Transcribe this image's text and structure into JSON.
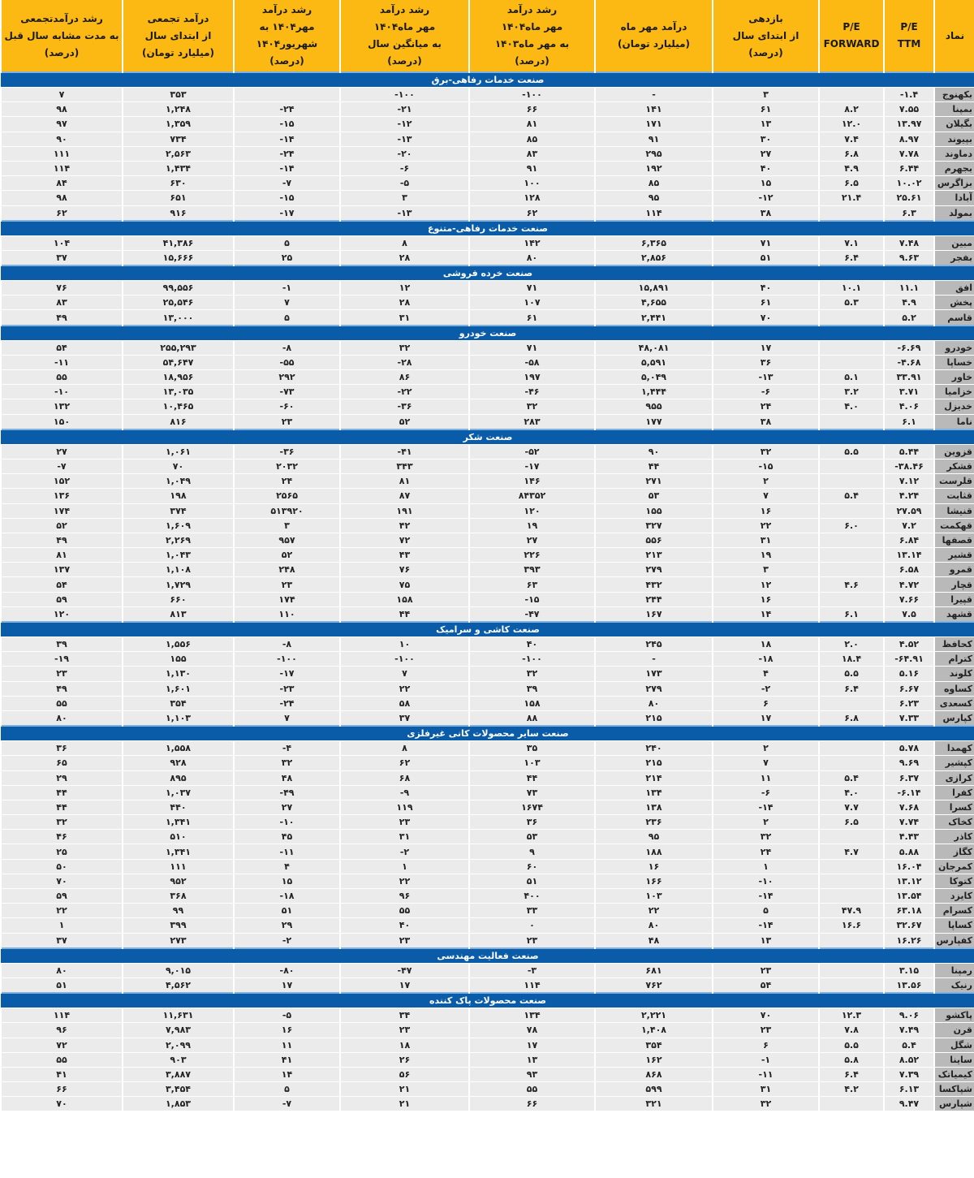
{
  "headers": [
    "نماد",
    "P/E\nTTM",
    "P/E\nFORWARD",
    "بازدهی\nاز ابتدای سال\n(درصد)",
    "درآمد مهر ماه\n(میلیارد تومان)",
    "رشد درآمد\nمهر ماه۱۴۰۴\nبه مهر ماه۱۴۰۳\n(درصد)",
    "رشد درآمد\nمهر ماه۱۴۰۴\nبه میانگین سال\n(درصد)",
    "رشد درآمد\nمهر۱۴۰۴ به\nشهریور۱۴۰۴\n(درصد)",
    "درآمد تجمعی\nاز ابتدای سال\n(میلیارد تومان)",
    "رشد درآمدتجمعی\nبه مدت مشابه سال قبل\n(درصد)"
  ],
  "colors": {
    "header_bg": "#fdb913",
    "group_bg": "#0b5ca8",
    "row_bg": "#ebebeb",
    "name_bg": "#b9b9b9"
  },
  "groups": [
    {
      "title": "صنعت خدمات رفاهی-برق",
      "rows": [
        [
          "بکهنوج",
          "-۱.۴",
          "",
          "۳",
          "-",
          "-۱۰۰",
          "-۱۰۰",
          "",
          "۳۵۳",
          "۷"
        ],
        [
          "بمپنا",
          "۷.۵۵",
          "۸.۲",
          "۶۱",
          "۱۴۱",
          "۶۶",
          "-۲۱",
          "-۲۴",
          "۱,۲۴۸",
          "۹۸"
        ],
        [
          "بگیلان",
          "۱۳.۹۷",
          "۱۲.۰",
          "۱۳",
          "۱۷۱",
          "۸۱",
          "-۱۲",
          "-۱۵",
          "۱,۳۵۹",
          "۹۷"
        ],
        [
          "بپیوند",
          "۸.۹۷",
          "۷.۴",
          "۳۰",
          "۹۱",
          "۸۵",
          "-۱۳",
          "-۱۴",
          "۷۳۴",
          "۹۰"
        ],
        [
          "دماوند",
          "۷.۷۸",
          "۶.۸",
          "۲۷",
          "۲۹۵",
          "۸۳",
          "-۲۰",
          "-۲۴",
          "۲,۵۶۳",
          "۱۱۱"
        ],
        [
          "بجهرم",
          "۶.۴۴",
          "۴.۹",
          "۴۰",
          "۱۹۲",
          "۹۱",
          "-۶",
          "-۱۴",
          "۱,۴۳۴",
          "۱۱۴"
        ],
        [
          "بزاگرس",
          "۱۰.۰۲",
          "۶.۵",
          "۱۵",
          "۸۵",
          "۱۰۰",
          "-۵",
          "-۷",
          "۶۳۰",
          "۸۴"
        ],
        [
          "آبادا",
          "۲۵.۶۱",
          "۲۱.۴",
          "-۱۲",
          "۹۵",
          "۱۲۸",
          "۳",
          "-۱۵",
          "۶۵۱",
          "۹۸"
        ],
        [
          "بمولد",
          "۶.۳",
          "",
          "۳۸",
          "۱۱۴",
          "۶۲",
          "-۱۳",
          "-۱۷",
          "۹۱۶",
          "۶۲"
        ]
      ]
    },
    {
      "title": "صنعت خدمات رفاهی-متنوع",
      "rows": [
        [
          "مبین",
          "۷.۴۸",
          "۷.۱",
          "۷۱",
          "۶,۳۶۵",
          "۱۴۲",
          "۸",
          "۵",
          "۴۱,۳۸۶",
          "۱۰۴"
        ],
        [
          "بفجر",
          "۹.۶۳",
          "۶.۴",
          "۵۱",
          "۲,۸۵۶",
          "۸۰",
          "۲۸",
          "۲۵",
          "۱۵,۶۶۶",
          "۳۷"
        ]
      ]
    },
    {
      "title": "صنعت خرده فروشی",
      "rows": [
        [
          "افق",
          "۱۱.۱",
          "۱۰.۱",
          "۴۰",
          "۱۵,۸۹۱",
          "۷۱",
          "۱۲",
          "-۱",
          "۹۹,۵۵۶",
          "۷۶"
        ],
        [
          "پخش",
          "۴.۹",
          "۵.۳",
          "۶۱",
          "۴,۶۵۵",
          "۱۰۷",
          "۲۸",
          "۷",
          "۲۵,۵۴۶",
          "۸۳"
        ],
        [
          "قاسم",
          "۵.۲",
          "",
          "۷۰",
          "۲,۴۴۱",
          "۶۱",
          "۳۱",
          "۵",
          "۱۳,۰۰۰",
          "۴۹"
        ]
      ]
    },
    {
      "title": "صنعت خودرو",
      "rows": [
        [
          "خودرو",
          "-۶.۶۹",
          "",
          "۱۷",
          "۴۸,۰۸۱",
          "۷۱",
          "۳۲",
          "-۸",
          "۲۵۵,۲۹۳",
          "۵۴"
        ],
        [
          "خساپا",
          "-۴.۶۸",
          "",
          "۳۶",
          "۵,۵۹۱",
          "-۵۸",
          "-۲۸",
          "-۵۵",
          "۵۴,۶۴۷",
          "-۱۱"
        ],
        [
          "خاور",
          "۳۳.۹۱",
          "۵.۱",
          "-۱۳",
          "۵,۰۴۹",
          "۱۹۷",
          "۸۶",
          "۲۹۲",
          "۱۸,۹۵۶",
          "۵۵"
        ],
        [
          "خزامیا",
          "۳.۷۱",
          "۳.۲",
          "-۶",
          "۱,۴۴۴",
          "-۴۶",
          "-۲۲",
          "-۷۳",
          "۱۳,۰۳۵",
          "-۱۰"
        ],
        [
          "خدیزل",
          "۴.۰۶",
          "۴.۰",
          "۲۴",
          "۹۵۵",
          "۳۲",
          "-۳۶",
          "-۶۰",
          "۱۰,۴۶۵",
          "۱۳۲"
        ],
        [
          "ناما",
          "۶.۱",
          "",
          "۳۸",
          "۱۷۷",
          "۲۸۳",
          "۵۲",
          "۲۳",
          "۸۱۶",
          "۱۵۰"
        ]
      ]
    },
    {
      "title": "صنعت شکر",
      "rows": [
        [
          "قزوین",
          "۵.۴۴",
          "۵.۵",
          "۳۲",
          "۹۰",
          "-۵۲",
          "-۴۱",
          "-۳۶",
          "۱,۰۶۱",
          "۲۷"
        ],
        [
          "قشکر",
          "-۳۸.۴۶",
          "",
          "-۱۵",
          "۴۴",
          "-۱۷",
          "۳۴۳",
          "۲۰۳۲",
          "۷۰",
          "-۷"
        ],
        [
          "قلرست",
          "۷.۱۲",
          "",
          "۲",
          "۲۷۱",
          "۱۴۶",
          "۸۱",
          "۲۴",
          "۱,۰۴۹",
          "۱۵۲"
        ],
        [
          "قثابت",
          "۴.۲۴",
          "۵.۴",
          "۷",
          "۵۳",
          "۸۴۳۵۲",
          "۸۷",
          "۲۵۶۵",
          "۱۹۸",
          "۱۳۶"
        ],
        [
          "قنیشا",
          "۲۷.۵۹",
          "",
          "۱۶",
          "۱۵۵",
          "۱۲۰",
          "۱۹۱",
          "۵۱۳۹۲۰",
          "۳۷۴",
          "۱۷۴"
        ],
        [
          "قهکمت",
          "۷.۲",
          "۶.۰",
          "۲۲",
          "۳۲۷",
          "۱۹",
          "۴۲",
          "۳",
          "۱,۶۰۹",
          "۵۲"
        ],
        [
          "قصفها",
          "۶.۸۴",
          "",
          "۳۱",
          "۵۵۶",
          "۲۷",
          "۷۲",
          "۹۵۷",
          "۲,۲۶۹",
          "۴۹"
        ],
        [
          "قشیر",
          "۱۳.۱۴",
          "",
          "۱۹",
          "۲۱۳",
          "۲۲۶",
          "۴۳",
          "۵۲",
          "۱,۰۴۳",
          "۸۱"
        ],
        [
          "قمرو",
          "۶.۵۸",
          "",
          "۳",
          "۲۷۹",
          "۳۹۳",
          "۷۶",
          "۲۴۸",
          "۱,۱۰۸",
          "۱۳۷"
        ],
        [
          "قچار",
          "۴.۷۲",
          "۴.۶",
          "۱۲",
          "۴۳۲",
          "۶۳",
          "۷۵",
          "۲۳",
          "۱,۷۲۹",
          "۵۴"
        ],
        [
          "قپیرا",
          "۷.۶۶",
          "",
          "۱۶",
          "۲۴۴",
          "-۱۵",
          "۱۵۸",
          "۱۷۴",
          "۶۶۰",
          "۵۹"
        ],
        [
          "قشهد",
          "۷.۵",
          "۶.۱",
          "۱۴",
          "۱۶۷",
          "-۴۷",
          "۴۴",
          "۱۱۰",
          "۸۱۳",
          "۱۲۰"
        ]
      ]
    },
    {
      "title": "صنعت کاشی و سرامیک",
      "rows": [
        [
          "کحافظ",
          "۴.۵۲",
          "۲.۰",
          "۱۸",
          "۲۴۵",
          "۴۰",
          "۱۰",
          "-۸",
          "۱,۵۵۶",
          "۳۹"
        ],
        [
          "کترام",
          "-۶۴.۹۱",
          "۱۸.۴",
          "-۱۸",
          "-",
          "-۱۰۰",
          "-۱۰۰",
          "-۱۰۰",
          "۱۵۵",
          "-۱۹"
        ],
        [
          "کلوند",
          "۵.۱۶",
          "۵.۵",
          "۴",
          "۱۷۳",
          "۳۲",
          "۷",
          "-۱۷",
          "۱,۱۳۰",
          "۲۳"
        ],
        [
          "کساوه",
          "۶.۶۷",
          "۶.۴",
          "-۲",
          "۲۷۹",
          "۳۹",
          "۲۲",
          "-۲۳",
          "۱,۶۰۱",
          "۴۹"
        ],
        [
          "کسعدی",
          "۶.۲۳",
          "",
          "۶",
          "۸۰",
          "۱۵۸",
          "۵۸",
          "-۲۴",
          "۳۵۴",
          "۵۵"
        ],
        [
          "کپارس",
          "۷.۳۳",
          "۶.۸",
          "۱۷",
          "۲۱۵",
          "۸۸",
          "۳۷",
          "۷",
          "۱,۱۰۳",
          "۸۰"
        ]
      ]
    },
    {
      "title": "صنعت سایر محصولات کانی غیرفلزی",
      "rows": [
        [
          "کهمدا",
          "۵.۷۸",
          "",
          "۲",
          "۲۴۰",
          "۳۵",
          "۸",
          "-۴",
          "۱,۵۵۸",
          "۳۶"
        ],
        [
          "کپشیر",
          "۹.۶۹",
          "",
          "۷",
          "۲۱۵",
          "۱۰۳",
          "۶۲",
          "۳۲",
          "۹۲۸",
          "۶۵"
        ],
        [
          "کرازی",
          "۶.۳۷",
          "۵.۴",
          "۱۱",
          "۲۱۴",
          "۴۴",
          "۶۸",
          "۴۸",
          "۸۹۵",
          "۲۹"
        ],
        [
          "کفرا",
          "-۶.۱۴",
          "۴.۰",
          "-۶",
          "۱۳۴",
          "۷۳",
          "-۹",
          "-۴۹",
          "۱,۰۳۷",
          "۴۴"
        ],
        [
          "کسرا",
          "۷.۶۸",
          "۷.۷",
          "-۱۴",
          "۱۳۸",
          "۱۶۷۴",
          "۱۱۹",
          "۲۷",
          "۴۴۰",
          "۴۴"
        ],
        [
          "کخاک",
          "۷.۷۴",
          "۶.۵",
          "۲",
          "۲۳۶",
          "۳۶",
          "۲۳",
          "-۱۰",
          "۱,۳۴۱",
          "۳۲"
        ],
        [
          "کاذر",
          "۴.۴۳",
          "",
          "۳۲",
          "۹۵",
          "۵۳",
          "۳۱",
          "۴۵",
          "۵۱۰",
          "۴۶"
        ],
        [
          "کگاز",
          "۵.۸۸",
          "۴.۷",
          "۲۴",
          "۱۸۸",
          "۹",
          "-۲",
          "-۱۱",
          "۱,۳۴۱",
          "۲۵"
        ],
        [
          "کمرجان",
          "۱۶.۰۴",
          "",
          "۱",
          "۱۶",
          "۶۰",
          "۱",
          "۴",
          "۱۱۱",
          "۵۰"
        ],
        [
          "کتوکا",
          "۱۳.۱۲",
          "",
          "-۱۰",
          "۱۶۶",
          "۵۱",
          "۲۲",
          "۱۵",
          "۹۵۲",
          "۷۰"
        ],
        [
          "کایزد",
          "۱۳.۵۴",
          "",
          "-۱۴",
          "۱۰۳",
          "۴۰۰",
          "۹۶",
          "-۱۸",
          "۳۶۸",
          "۵۹"
        ],
        [
          "کسرام",
          "۶۳.۱۸",
          "۴۷.۹",
          "۵",
          "۲۲",
          "۳۳",
          "۵۵",
          "۵۱",
          "۹۹",
          "۲۲"
        ],
        [
          "کساپا",
          "۳۲.۶۷",
          "۱۶.۶",
          "-۱۴",
          "۸۰",
          "۰",
          "۴۰",
          "۲۹",
          "۳۹۹",
          "۱"
        ],
        [
          "کفپارس",
          "۱۶.۲۶",
          "",
          "۱۳",
          "۴۸",
          "۲۳",
          "۲۳",
          "-۲",
          "۲۷۳",
          "۳۷"
        ]
      ]
    },
    {
      "title": "صنعت فعالیت مهندسی",
      "rows": [
        [
          "رمپنا",
          "۳.۱۵",
          "",
          "۲۳",
          "۶۸۱",
          "-۳",
          "-۴۷",
          "-۸۰",
          "۹,۰۱۵",
          "۸۰"
        ],
        [
          "رنیک",
          "۱۳.۵۶",
          "",
          "۵۴",
          "۷۶۲",
          "۱۱۴",
          "۱۷",
          "۱۷",
          "۴,۵۶۲",
          "۵۱"
        ]
      ]
    },
    {
      "title": "صنعت محصولات پاک کننده",
      "rows": [
        [
          "پاکشو",
          "۹.۰۶",
          "۱۲.۳",
          "۷۰",
          "۲,۲۲۱",
          "۱۳۴",
          "۳۴",
          "-۵",
          "۱۱,۶۳۱",
          "۱۱۴"
        ],
        [
          "قرن",
          "۷.۴۹",
          "۷.۸",
          "۲۳",
          "۱,۴۰۸",
          "۷۸",
          "۲۳",
          "۱۶",
          "۷,۹۸۳",
          "۹۶"
        ],
        [
          "شگل",
          "۵.۴",
          "۵.۵",
          "۶",
          "۳۵۴",
          "۱۷",
          "۱۸",
          "۱۱",
          "۲,۰۹۹",
          "۷۲"
        ],
        [
          "ساینا",
          "۸.۵۲",
          "۵.۸",
          "-۱",
          "۱۶۲",
          "۱۳",
          "۲۶",
          "۴۱",
          "۹۰۳",
          "۵۵"
        ],
        [
          "کیمیاتک",
          "۷.۳۹",
          "۶.۴",
          "-۱۱",
          "۸۶۸",
          "۹۳",
          "۵۶",
          "۱۴",
          "۳,۸۸۷",
          "۴۱"
        ],
        [
          "شپاکسا",
          "۶.۱۳",
          "۴.۲",
          "۳۱",
          "۵۹۹",
          "۵۵",
          "۲۱",
          "۵",
          "۳,۴۵۴",
          "۶۶"
        ],
        [
          "شپارس",
          "۹.۴۷",
          "",
          "۳۲",
          "۳۲۱",
          "۶۶",
          "۲۱",
          "-۷",
          "۱,۸۵۳",
          "۷۰"
        ]
      ]
    }
  ]
}
